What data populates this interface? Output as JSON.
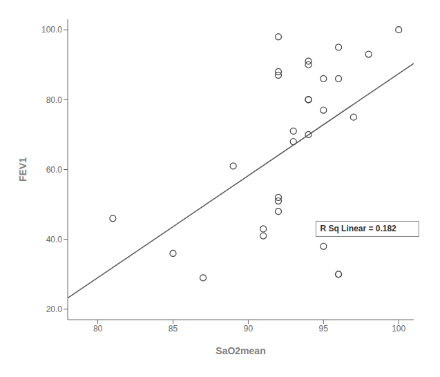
{
  "chart_data": {
    "type": "scatter",
    "xlabel": "SaO2mean",
    "ylabel": "FEV1",
    "xlim": [
      78,
      101
    ],
    "ylim": [
      17,
      103
    ],
    "xticks": [
      80,
      85,
      90,
      95,
      100
    ],
    "yticks": [
      {
        "value": 20.0,
        "label": "20.0"
      },
      {
        "value": 40.0,
        "label": "40.0"
      },
      {
        "value": 60.0,
        "label": "60.0"
      },
      {
        "value": 80.0,
        "label": "80.0"
      },
      {
        "value": 100.0,
        "label": "100.0"
      }
    ],
    "grid": false,
    "series": [
      {
        "type": "scatter",
        "marker": "circle",
        "color": "#444444",
        "x": [
          81,
          85,
          87,
          89,
          91,
          91,
          92,
          92,
          92,
          92,
          92,
          92,
          93,
          93,
          94,
          94,
          94,
          94,
          94,
          95,
          95,
          95,
          96,
          96,
          96,
          96,
          97,
          98,
          100
        ],
        "values": [
          46,
          36,
          29,
          61,
          41,
          43,
          51,
          52,
          48,
          88,
          87,
          98,
          68,
          71,
          70,
          80,
          90,
          91,
          80,
          38,
          77,
          86,
          30,
          30,
          95,
          86,
          75,
          93,
          100
        ]
      },
      {
        "type": "line",
        "line_style": "solid",
        "color": "#555555",
        "x": [
          78,
          101
        ],
        "values": [
          23.184,
          90.364
        ]
      }
    ],
    "annotations": [
      {
        "text": "R Sq Linear = 0.182",
        "x": 94.5,
        "y": 43
      }
    ]
  }
}
